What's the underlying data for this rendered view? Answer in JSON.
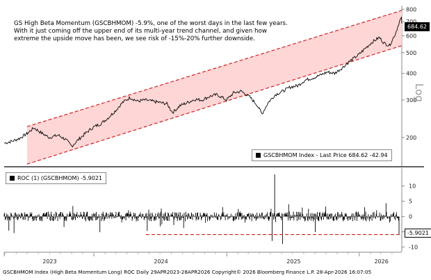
{
  "annotation": {
    "line1": "GS High Beta Momentum (GSCBHMOM) -5.9%, one of the worst days in the last few years.",
    "line2": "With it just coming off the upper end of its multi-year trend channel, and given how",
    "line3": "extreme the upside move has been, we see risk of -15%-20% further downside."
  },
  "footer": "GSCBHMOM Index (High Beta Momentum Long) ROC Daily 29APR2023-28APR2026 Copyright© 2026 Bloomberg Finance L.P. 28-Apr-2026 16:07:05",
  "colors": {
    "line": "#000000",
    "channel_fill": "#ffd6d6",
    "channel_edge": "#d02020",
    "axis": "#555555"
  },
  "chart_data": [
    {
      "type": "line",
      "scale": "log",
      "series": [
        {
          "name": "GSCBHMOM Index - Last Price",
          "x": [
            "2023-04-29",
            "2023-05-20",
            "2023-06-10",
            "2023-06-30",
            "2023-07-20",
            "2023-08-10",
            "2023-08-31",
            "2023-09-25",
            "2023-10-15",
            "2023-11-01",
            "2023-11-20",
            "2023-12-10",
            "2023-12-31",
            "2024-01-20",
            "2024-02-10",
            "2024-03-01",
            "2024-03-20",
            "2024-04-10",
            "2024-04-30",
            "2024-05-20",
            "2024-06-10",
            "2024-06-30",
            "2024-07-20",
            "2024-08-05",
            "2024-08-25",
            "2024-09-15",
            "2024-10-05",
            "2024-10-25",
            "2024-11-15",
            "2024-12-05",
            "2024-12-31",
            "2025-01-20",
            "2025-02-10",
            "2025-03-05",
            "2025-03-25",
            "2025-04-08",
            "2025-04-25",
            "2025-05-15",
            "2025-06-05",
            "2025-06-25",
            "2025-07-15",
            "2025-08-05",
            "2025-08-25",
            "2025-09-15",
            "2025-10-05",
            "2025-10-25",
            "2025-11-15",
            "2025-12-05",
            "2025-12-31",
            "2026-01-15",
            "2026-02-05",
            "2026-02-25",
            "2026-03-10",
            "2026-03-25",
            "2026-04-10",
            "2026-04-22",
            "2026-04-27",
            "2026-04-28"
          ],
          "values": [
            188,
            192,
            198,
            208,
            222,
            210,
            200,
            205,
            196,
            182,
            196,
            210,
            224,
            232,
            248,
            268,
            292,
            308,
            296,
            300,
            296,
            292,
            288,
            262,
            282,
            292,
            302,
            300,
            312,
            318,
            300,
            324,
            330,
            310,
            285,
            258,
            292,
            318,
            330,
            345,
            350,
            372,
            380,
            392,
            406,
            400,
            425,
            455,
            490,
            520,
            560,
            590,
            555,
            540,
            612,
            705,
            728,
            684.62
          ]
        }
      ],
      "channel": {
        "lower_start": 150,
        "lower_end": 540,
        "upper_start": 225,
        "upper_end": 790
      },
      "yticks": [
        200,
        300,
        400,
        500,
        600,
        700,
        800
      ],
      "ylabel": "Log",
      "ylim": [
        148,
        820
      ],
      "last_value": "684.62",
      "legend": {
        "label": "GSCBHMOM Index - Last Price 684.62 -42.94"
      }
    },
    {
      "type": "bar",
      "series": [
        {
          "name": "ROC (1) (GSCBHMOM)",
          "x": [
            "2023-04-29",
            "2026-04-28"
          ],
          "values": [
            0.5,
            -5.9021
          ]
        }
      ],
      "reference_line": -5.9021,
      "yticks": [
        -10,
        -5,
        0,
        5,
        10
      ],
      "ylim": [
        -11,
        14
      ],
      "last_value": "-5.9021",
      "legend": {
        "label": "ROC (1) (GSCBHMOM) -5.9021"
      }
    }
  ],
  "x_axis": {
    "ticks": [
      "2023",
      "2024",
      "2025",
      "2026"
    ]
  }
}
